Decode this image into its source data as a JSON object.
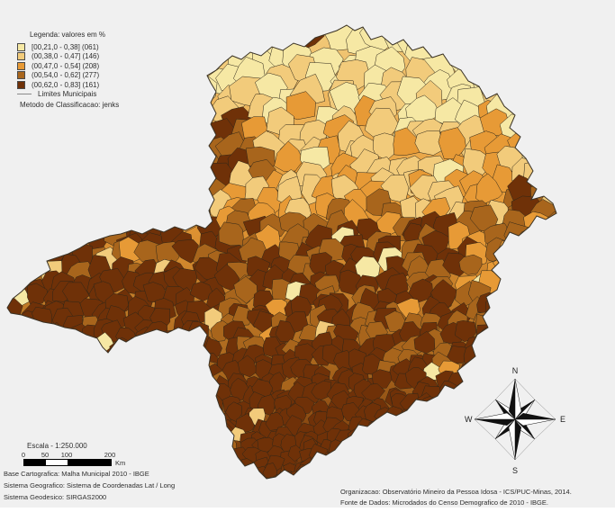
{
  "background": "#f0f0f0",
  "legend": {
    "title": "Legenda: valores em %",
    "entries": [
      {
        "label": "[00,21,0 - 0,38] (061)",
        "color": "#F6E8A4"
      },
      {
        "label": "(00,38,0 - 0,47] (146)",
        "color": "#F2CB7B"
      },
      {
        "label": "(00,47,0 - 0,54] (208)",
        "color": "#E79A36"
      },
      {
        "label": "(00,54,0 - 0,62] (277)",
        "color": "#A8651C"
      },
      {
        "label": "(00,62,0 - 0,83] (161)",
        "color": "#6F3108"
      }
    ],
    "limits_label": "Limites Municipais",
    "method_label": "Metodo de Classificacao: jenks"
  },
  "scalebar": {
    "title": "Escala - 1:250.000",
    "ticks": [
      "0",
      "50",
      "100",
      "200"
    ],
    "unit": "Km"
  },
  "credits_left": [
    "Base Cartografica: Malha Municipal 2010 - IBGE",
    "Sistema Geografico: Sistema de Coordenadas Lat / Long",
    "Sistema Geodesico: SIRGAS2000"
  ],
  "credits_right": [
    "Organizacao: Observatório Mineiro da Pessoa Idosa - ICS/PUC-Minas, 2014.",
    "Fonte de Dados: Microdados do Censo Demografico de 2010 - IBGE."
  ],
  "compass": {
    "n": "N",
    "s": "S",
    "e": "E",
    "w": "W"
  },
  "map": {
    "region": "Minas Gerais - choropleth by municipality",
    "municipal_border_color": "#2d2619",
    "state_outline_color": "#3a3225"
  }
}
